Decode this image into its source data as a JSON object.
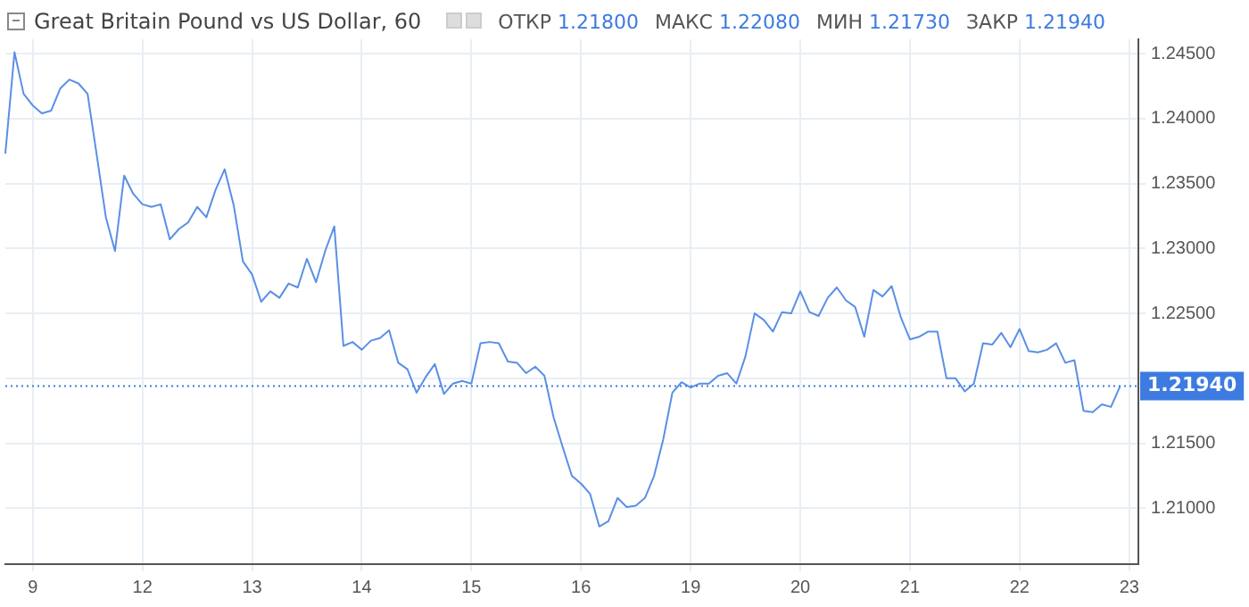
{
  "chart_data": {
    "type": "line",
    "title": "Great Britain Pound vs US Dollar, 60",
    "annotations": [
      "ОТКР 1.21800",
      "МАКС 1.22080",
      "МИН 1.21730",
      "ЗАКР 1.21940"
    ],
    "categories": [
      null,
      null,
      null,
      "9",
      null,
      null,
      null,
      null,
      null,
      null,
      null,
      null,
      null,
      null,
      null,
      "12",
      null,
      null,
      null,
      null,
      null,
      null,
      null,
      null,
      null,
      null,
      null,
      "13",
      null,
      null,
      null,
      null,
      null,
      null,
      null,
      null,
      null,
      null,
      null,
      "14",
      null,
      null,
      null,
      null,
      null,
      null,
      null,
      null,
      null,
      null,
      null,
      "15",
      null,
      null,
      null,
      null,
      null,
      null,
      null,
      null,
      null,
      null,
      null,
      "16",
      null,
      null,
      null,
      null,
      null,
      null,
      null,
      null,
      null,
      null,
      null,
      "19",
      null,
      null,
      null,
      null,
      null,
      null,
      null,
      null,
      null,
      null,
      null,
      "20",
      null,
      null,
      null,
      null,
      null,
      null,
      null,
      null,
      null,
      null,
      null,
      "21",
      null,
      null,
      null,
      null,
      null,
      null,
      null,
      null,
      null,
      null,
      null,
      "22",
      null,
      null,
      null,
      null,
      null,
      null,
      null,
      null,
      null,
      null,
      null,
      "23",
      null
    ],
    "ylim": [
      1.2057,
      1.2461
    ],
    "yticks": [
      {
        "value": 1.21,
        "label": "1.21000"
      },
      {
        "value": 1.215,
        "label": "1.21500"
      },
      {
        "value": 1.22,
        "label": null
      },
      {
        "value": 1.225,
        "label": "1.22500"
      },
      {
        "value": 1.23,
        "label": "1.23000"
      },
      {
        "value": 1.235,
        "label": "1.23500"
      },
      {
        "value": 1.24,
        "label": "1.24000"
      },
      {
        "value": 1.245,
        "label": "1.24500"
      }
    ],
    "grid": true,
    "marker": "none",
    "line_style": "solid",
    "ref_lines": [
      {
        "axis": "y",
        "value": 1.2194,
        "label": "1.21940",
        "color": "#3d7be0",
        "line_style": "dotted"
      }
    ],
    "series": [
      {
        "color": "#5a8fe6",
        "values": [
          1.2373,
          1.2451,
          1.2419,
          1.241,
          1.2404,
          1.2406,
          1.2423,
          1.243,
          1.2427,
          1.2419,
          1.2372,
          1.2324,
          1.2298,
          1.2356,
          1.2342,
          1.2334,
          1.2332,
          1.2334,
          1.2307,
          1.2315,
          1.232,
          1.2332,
          1.2324,
          1.2345,
          1.2361,
          1.2333,
          1.229,
          1.228,
          1.2259,
          1.2267,
          1.2262,
          1.2273,
          1.227,
          1.2292,
          1.2274,
          1.2298,
          1.2317,
          1.2225,
          1.2228,
          1.2222,
          1.2229,
          1.2231,
          1.2237,
          1.2212,
          1.2207,
          1.2189,
          1.2201,
          1.2211,
          1.2188,
          1.2196,
          1.2198,
          1.2196,
          1.2227,
          1.2228,
          1.2227,
          1.2213,
          1.2212,
          1.2204,
          1.2209,
          1.2202,
          1.217,
          1.2147,
          1.2125,
          1.2119,
          1.2111,
          1.2086,
          1.209,
          1.2108,
          1.2101,
          1.2102,
          1.2108,
          1.2125,
          1.2153,
          1.2189,
          1.2197,
          1.2193,
          1.2196,
          1.2196,
          1.2202,
          1.2204,
          1.2196,
          1.2217,
          1.225,
          1.2245,
          1.2236,
          1.2251,
          1.225,
          1.2267,
          1.2251,
          1.2248,
          1.2262,
          1.227,
          1.226,
          1.2255,
          1.2232,
          1.2268,
          1.2263,
          1.2271,
          1.2247,
          1.223,
          1.2232,
          1.2236,
          1.2236,
          1.22,
          1.22,
          1.219,
          1.2196,
          1.2227,
          1.2226,
          1.2235,
          1.2224,
          1.2238,
          1.2221,
          1.222,
          1.2222,
          1.2227,
          1.2212,
          1.2214,
          1.2175,
          1.2174,
          1.218,
          1.2178,
          1.2194,
          null,
          null
        ]
      }
    ]
  }
}
